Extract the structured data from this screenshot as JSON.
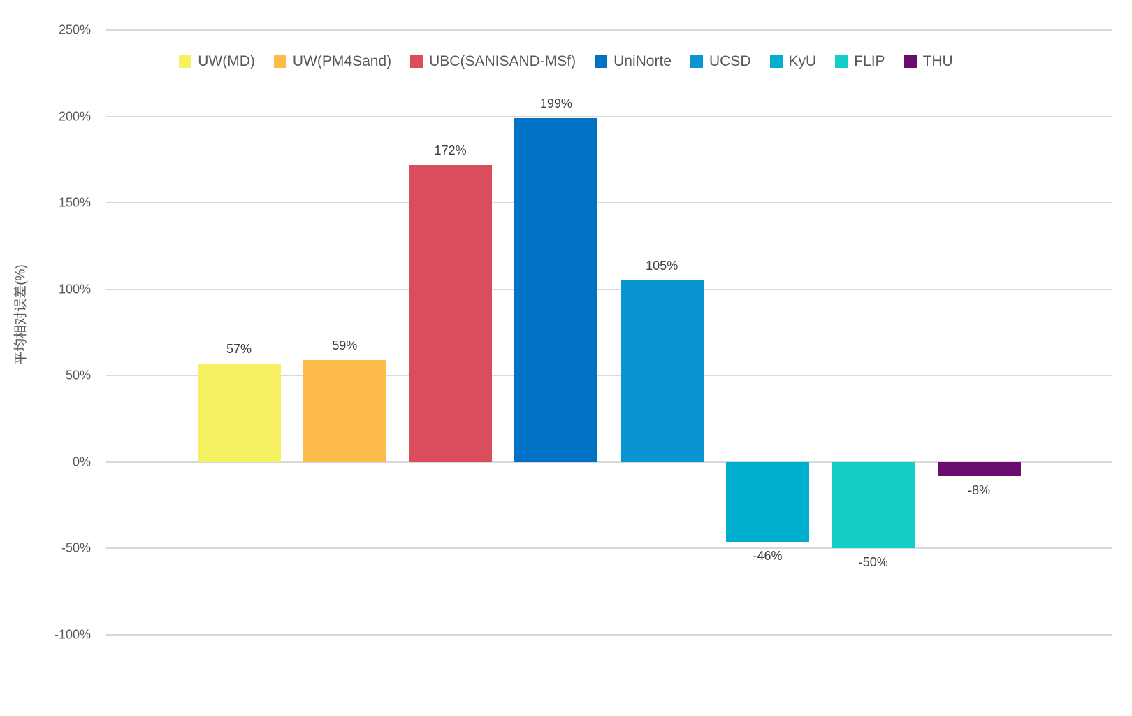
{
  "chart_data": {
    "type": "bar",
    "title": "",
    "xlabel": "",
    "ylabel": "平均相对误差(%)",
    "ylim": [
      -100,
      250
    ],
    "yticks": [
      250,
      200,
      150,
      100,
      50,
      0,
      -50,
      -100
    ],
    "ytick_suffix": "%",
    "grid": true,
    "legend_position": "top",
    "categories": [
      "UW(MD)",
      "UW(PM4Sand)",
      "UBC(SANISAND-MSf)",
      "UniNorte",
      "UCSD",
      "KyU",
      "FLIP",
      "THU"
    ],
    "values": [
      57,
      59,
      172,
      199,
      105,
      -46,
      -50,
      -8
    ],
    "data_labels": [
      "57%",
      "59%",
      "172%",
      "199%",
      "105%",
      "-46%",
      "-50%",
      "-8%"
    ],
    "colors": [
      "#F5F163",
      "#FDBB4B",
      "#DA4D5C",
      "#0272C6",
      "#0994D2",
      "#00AFD0",
      "#14CFC7",
      "#6A0B70"
    ]
  },
  "style_colors": {
    "background": "#FFFFFF",
    "gridline": "#D9D9D9",
    "tick_text": "#595959",
    "legend_text": "#595959",
    "data_label_text": "#404040"
  }
}
